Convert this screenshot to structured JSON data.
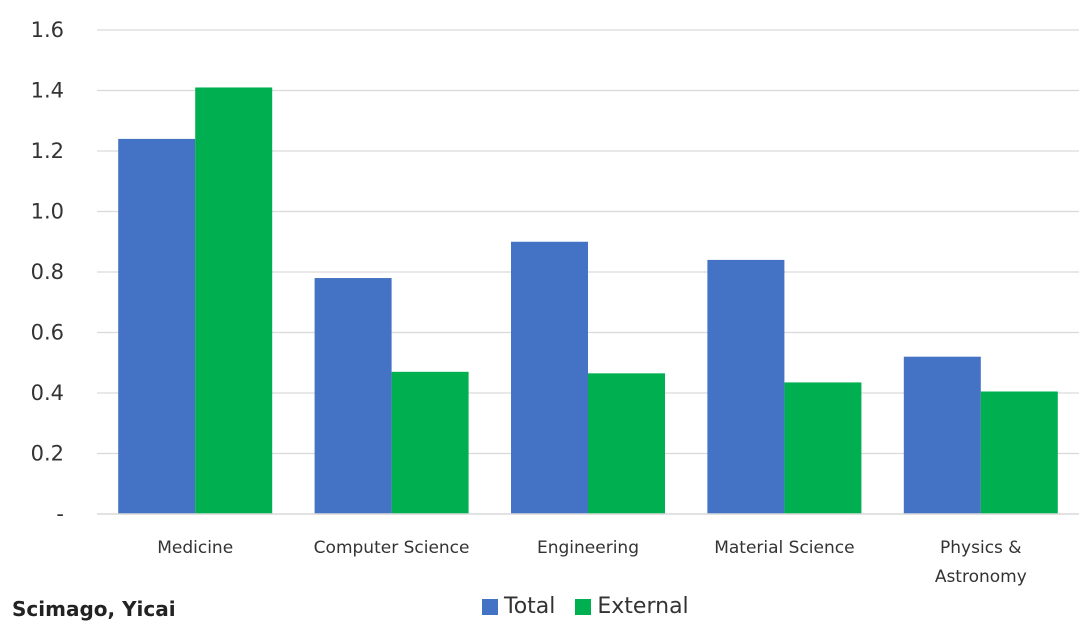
{
  "chart_data": {
    "type": "bar",
    "categories": [
      "Medicine",
      "Computer Science",
      "Engineering",
      "Material Science",
      "Physics & Astronomy"
    ],
    "category_lines": [
      [
        "Medicine"
      ],
      [
        "Computer Science"
      ],
      [
        "Engineering"
      ],
      [
        "Material Science"
      ],
      [
        "Physics &",
        "Astronomy"
      ]
    ],
    "series": [
      {
        "name": "Total",
        "color": "#4472C4",
        "values": [
          1.24,
          0.78,
          0.9,
          0.84,
          0.52
        ]
      },
      {
        "name": "External",
        "color": "#00B050",
        "values": [
          1.41,
          0.47,
          0.465,
          0.435,
          0.405
        ]
      }
    ],
    "yticks": [
      "-",
      "0.2",
      "0.4",
      "0.6",
      "0.8",
      "1.0",
      "1.2",
      "1.4",
      "1.6"
    ],
    "ylim": [
      0,
      1.6
    ],
    "grid": true,
    "legend_position": "bottom",
    "title": "",
    "xlabel": "",
    "ylabel": ""
  },
  "source_note": "Scimago, Yicai"
}
